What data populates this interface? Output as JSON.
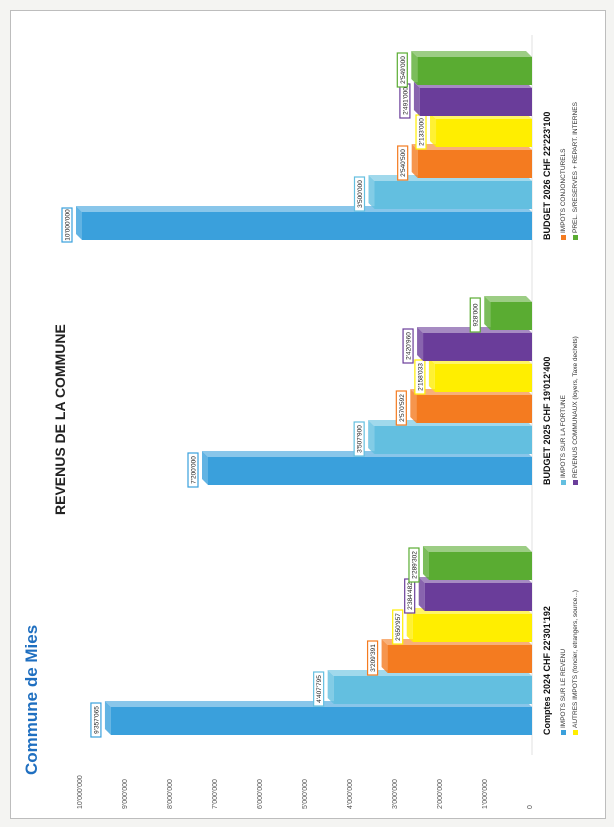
{
  "header": {
    "commune_title": "Commune de Mies",
    "chart_title": "REVENUS DE LA COMMUNE"
  },
  "chart_data": {
    "type": "bar",
    "title": "REVENUS DE LA COMMUNE",
    "ylim": [
      0,
      10000000
    ],
    "yticks": [
      "0",
      "1'000'000",
      "2'000'000",
      "3'000'000",
      "4'000'000",
      "5'000'000",
      "6'000'000",
      "7'000'000",
      "8'000'000",
      "9'000'000",
      "10'000'000"
    ],
    "groups": [
      {
        "title": "Comptes 2024",
        "total": "CHF 22'301'192"
      },
      {
        "title": "BUDGET 2025",
        "total": "CHF 19'012'400"
      },
      {
        "title": "BUDGET 2026",
        "total": "CHF 22'223'100"
      }
    ],
    "series": [
      {
        "name": "IMPOTS SUR LE REVENU",
        "color": "#3aa0dc",
        "values": [
          9357065,
          7200000,
          10000000
        ],
        "labels": [
          "9'357'065",
          "7'200'000",
          "10'000'000"
        ]
      },
      {
        "name": "IMPOTS SUR LA FORTUNE",
        "color": "#63bfe0",
        "values": [
          4407795,
          3507900,
          3500000
        ],
        "labels": [
          "4'407'795",
          "3'507'900",
          "3'500'000"
        ]
      },
      {
        "name": "IMPOTS CONJONCTURELS",
        "color": "#f47b20",
        "values": [
          3209391,
          2570592,
          2540500
        ],
        "labels": [
          "3'209'391",
          "2'570'592",
          "2'540'500"
        ]
      },
      {
        "name": "AUTRES IMPOTS (foncier, etrangers, source...)",
        "color": "#ffee00",
        "values": [
          2650957,
          2158033,
          2133000
        ],
        "labels": [
          "2'650'957",
          "2'158'033",
          "2'133'000"
        ]
      },
      {
        "name": "REVENUS COMMUNAUX (loyers, Taxe dechets)",
        "color": "#6a3d9a",
        "values": [
          2384482,
          2420960,
          2491000
        ],
        "labels": [
          "2'384'482",
          "2'420'960",
          "2'491'000"
        ]
      },
      {
        "name": "PREL. S/RESERVES + REPART. INTERNES",
        "color": "#5aac32",
        "values": [
          2289302,
          928000,
          2549000
        ],
        "labels": [
          "2'289'302",
          "928'000",
          "2'549'000"
        ]
      }
    ]
  }
}
